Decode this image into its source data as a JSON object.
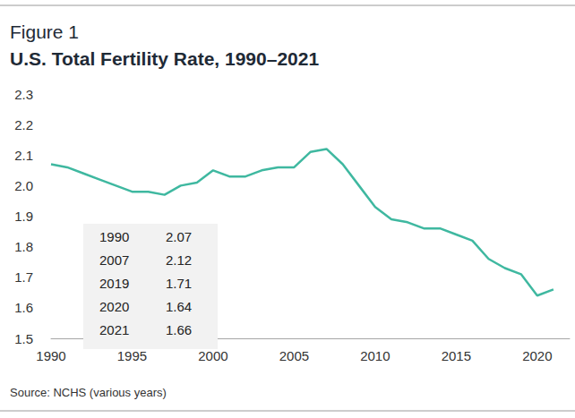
{
  "chart_data": {
    "type": "line",
    "figure_label": "Figure 1",
    "title": "U.S. Total Fertility Rate, 1990–2021",
    "source": "Source: NCHS (various years)",
    "x": [
      1990,
      1991,
      1992,
      1993,
      1994,
      1995,
      1996,
      1997,
      1998,
      1999,
      2000,
      2001,
      2002,
      2003,
      2004,
      2005,
      2006,
      2007,
      2008,
      2009,
      2010,
      2011,
      2012,
      2013,
      2014,
      2015,
      2016,
      2017,
      2018,
      2019,
      2020,
      2021
    ],
    "values": [
      2.07,
      2.06,
      2.04,
      2.02,
      2.0,
      1.98,
      1.98,
      1.97,
      2.0,
      2.01,
      2.05,
      2.03,
      2.03,
      2.05,
      2.06,
      2.06,
      2.11,
      2.12,
      2.07,
      2.0,
      1.93,
      1.89,
      1.88,
      1.86,
      1.86,
      1.84,
      1.82,
      1.76,
      1.73,
      1.71,
      1.64,
      1.66
    ],
    "color": "#3fb8a0",
    "xlim": [
      1990,
      2022
    ],
    "xticks": [
      1990,
      1995,
      2000,
      2005,
      2010,
      2015,
      2020
    ],
    "ylim": [
      1.5,
      2.3
    ],
    "yticks": [
      1.5,
      1.6,
      1.7,
      1.8,
      1.9,
      {
        "value": 2,
        "label": "2.0"
      },
      2.1,
      2.2,
      2.3
    ],
    "grid": false,
    "table": [
      [
        1990,
        2.07
      ],
      [
        2007,
        2.12
      ],
      [
        2019,
        1.71
      ],
      [
        2020,
        1.64
      ],
      [
        2021,
        1.66
      ]
    ]
  }
}
